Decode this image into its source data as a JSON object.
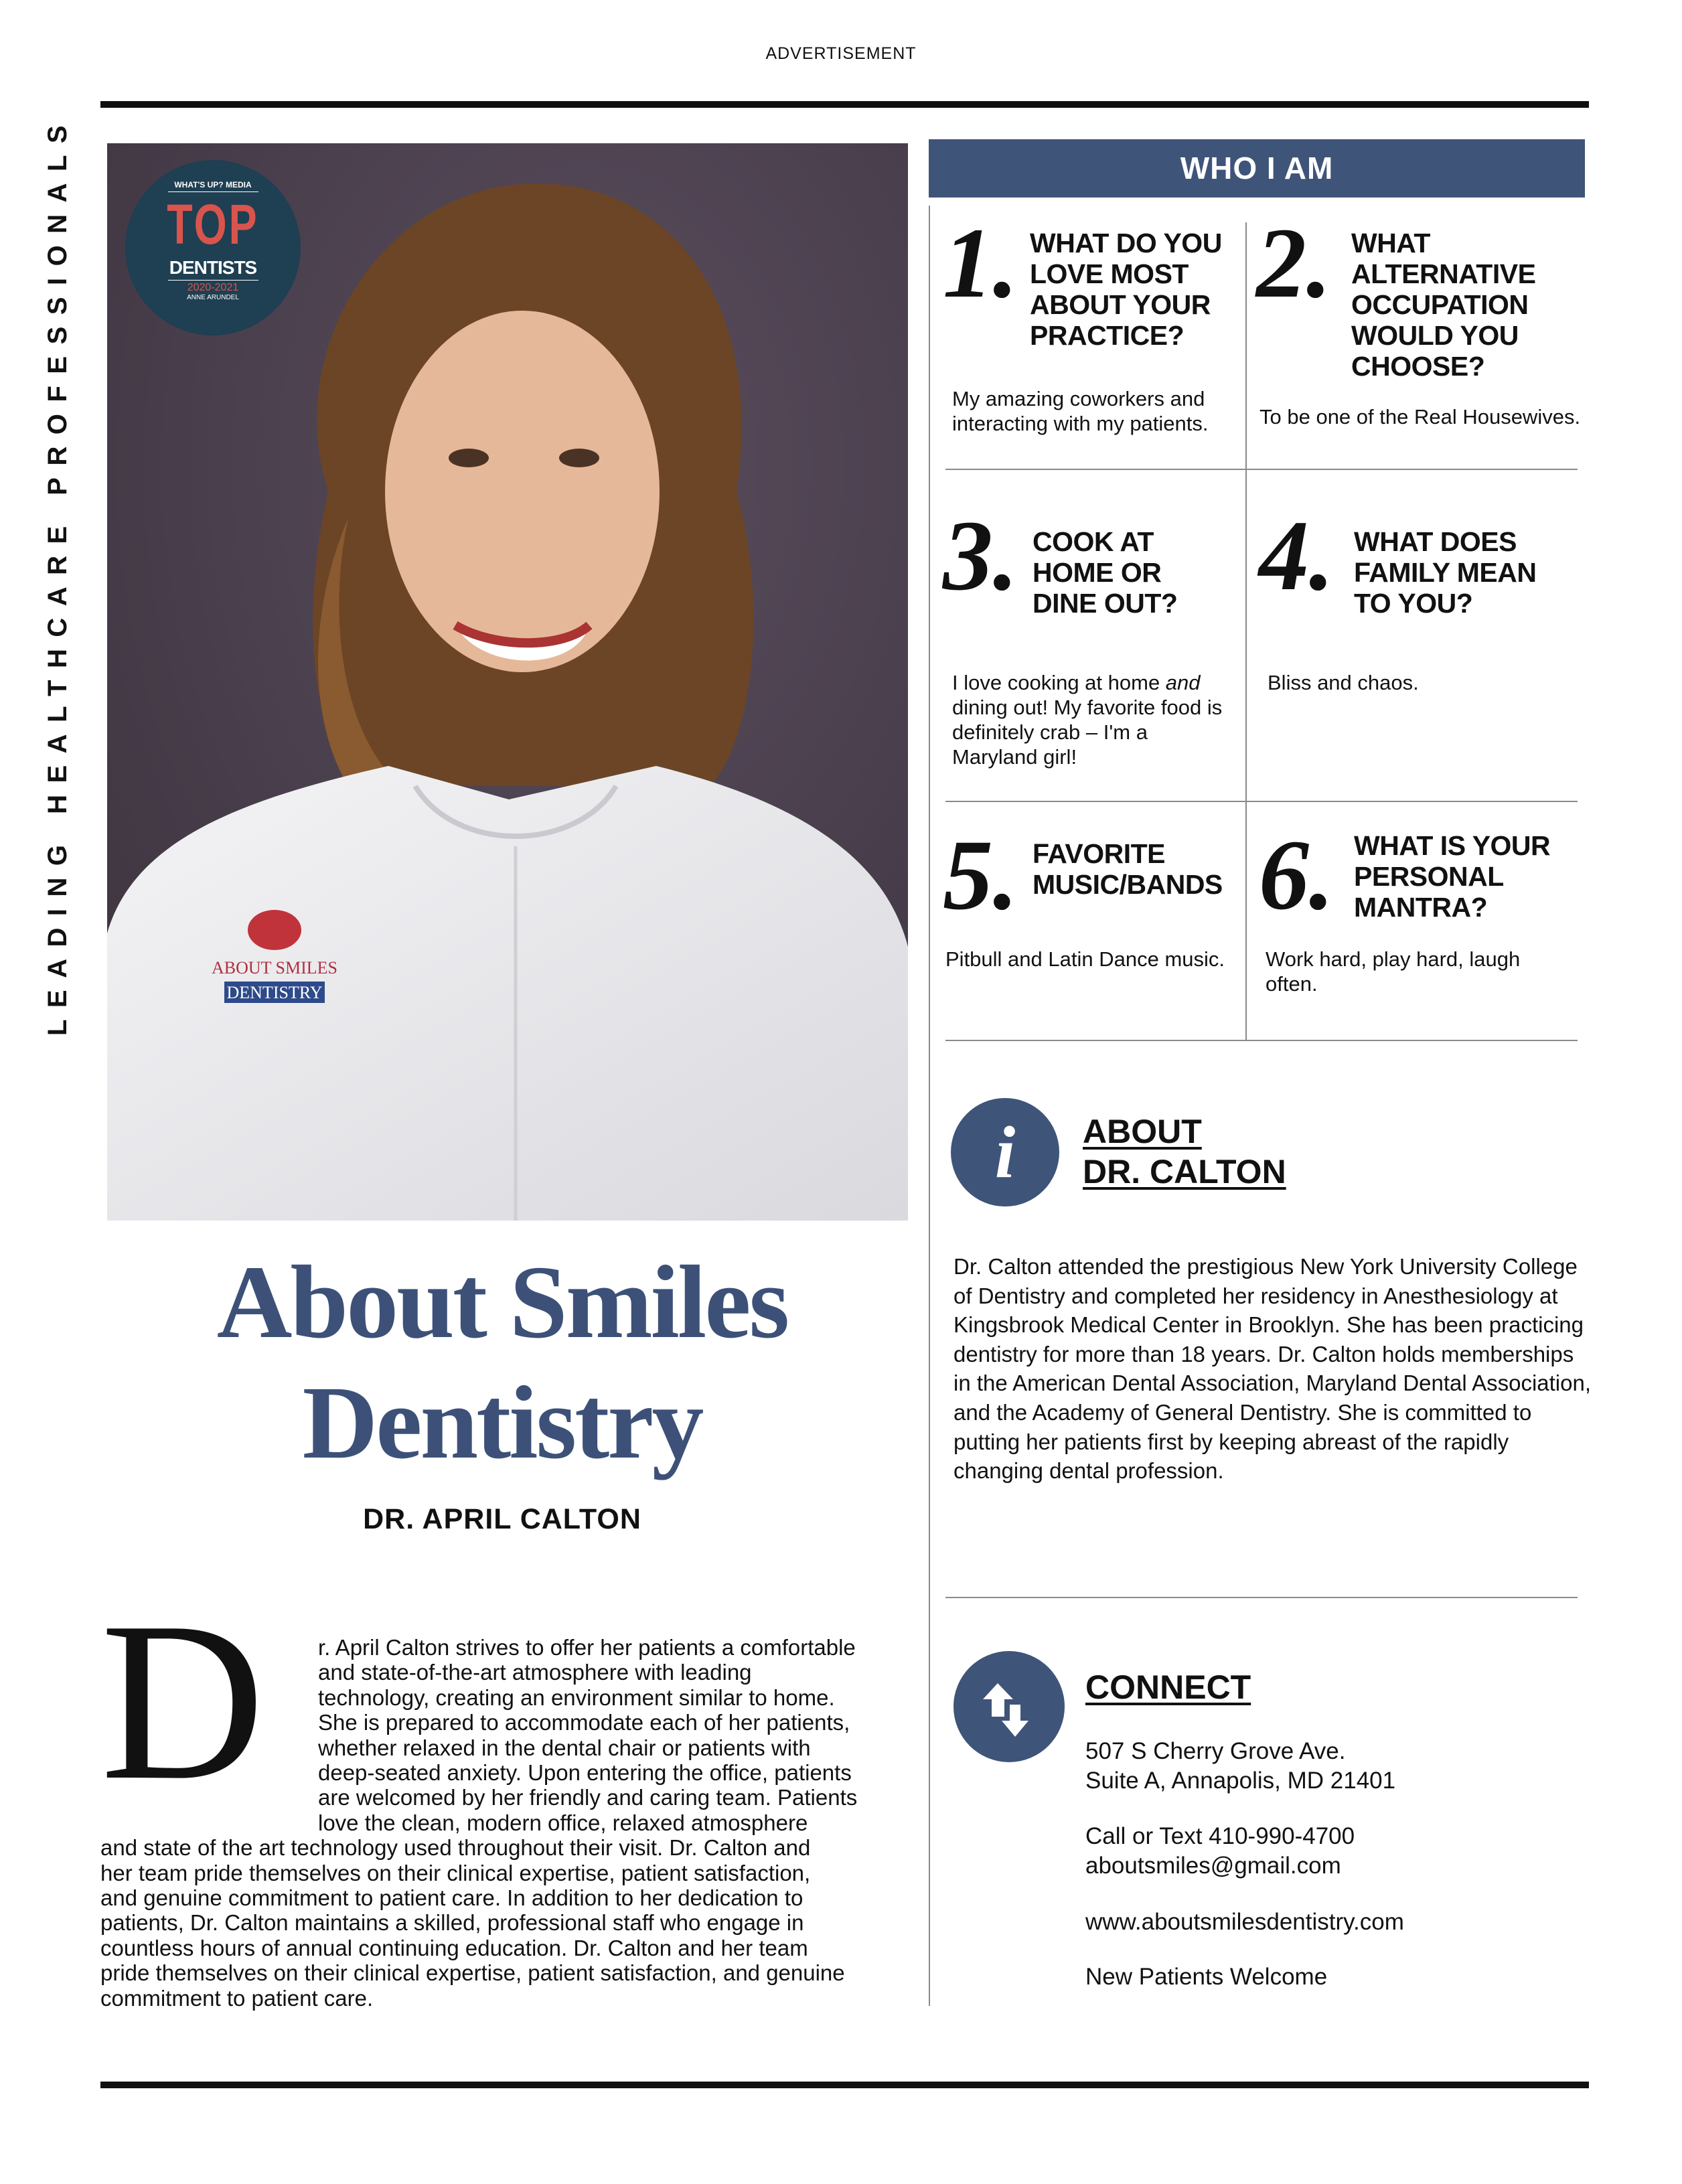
{
  "header": {
    "label": "ADVERTISEMENT"
  },
  "side_label": "LEADING HEALTHCARE PROFESSIONALS",
  "badge": {
    "publisher": "WHAT'S UP? MEDIA",
    "top": "TOP",
    "title": "DENTISTS",
    "years": "2020-2021",
    "region": "ANNE ARUNDEL"
  },
  "coat_logo": "ABOUT SMILES DENTISTRY",
  "colors": {
    "accent": "#3f5479",
    "headline": "#3d5178",
    "badge_bg": "#1f3f52",
    "badge_red": "#d9544d"
  },
  "who": {
    "title": "WHO I AM",
    "items": [
      {
        "number": "1.",
        "question": "WHAT DO YOU LOVE MOST ABOUT YOUR PRACTICE?",
        "answer": "My amazing coworkers and interacting with my patients."
      },
      {
        "number": "2.",
        "question": "WHAT ALTERNATIVE OCCUPATION WOULD YOU CHOOSE?",
        "answer": "To be one of the Real Housewives."
      },
      {
        "number": "3.",
        "question": "COOK AT HOME OR DINE OUT?",
        "answer_pre": "I love cooking at home ",
        "answer_em": "and",
        "answer_post": " dining out! My favorite food is definitely crab – I'm a Maryland girl!"
      },
      {
        "number": "4.",
        "question": "WHAT DOES FAMILY MEAN TO YOU?",
        "answer": "Bliss and chaos."
      },
      {
        "number": "5.",
        "question": "FAVORITE MUSIC/BANDS",
        "answer": "Pitbull and Latin Dance music."
      },
      {
        "number": "6.",
        "question": "WHAT IS YOUR PERSONAL MANTRA?",
        "answer": "Work hard, play hard, laugh often."
      }
    ]
  },
  "about": {
    "icon": "info-icon",
    "title_1": "ABOUT",
    "title_2": "DR. CALTON",
    "body": "Dr. Calton attended the prestigious New York University College of Dentistry and completed her residency in Anesthesiology at Kingsbrook Medical Center in Brooklyn. She has been practicing dentistry for more than 18 years. Dr. Calton holds memberships in the American Dental Association, Maryland Dental Association, and the Academy of General Dentistry. She is committed to putting her patients first by keeping abreast of the rapidly changing dental profession."
  },
  "connect": {
    "icon": "up-down-arrows-icon",
    "title": "CONNECT",
    "address_1": "507 S Cherry Grove Ave.",
    "address_2": "Suite A, Annapolis, MD 21401",
    "phone": "Call or Text 410-990-4700",
    "email": "aboutsmiles@gmail.com",
    "website": "www.aboutsmilesdentistry.com",
    "note": "New Patients Welcome"
  },
  "feature": {
    "headline_1": "About Smiles",
    "headline_2": "Dentistry",
    "doctor": "DR. APRIL CALTON",
    "drop_cap": "D",
    "body_lines": [
      "r. April Calton strives to offer her patients a comfortable",
      "and state-of-the-art atmosphere with leading",
      "technology, creating an environment similar to home.",
      "She is prepared to accommodate each of her patients,",
      "whether relaxed in the dental chair or patients with",
      "deep-seated anxiety. Upon entering the office, patients",
      "are welcomed by her friendly and caring team. Patients",
      "love the clean, modern office, relaxed atmosphere",
      "and state of the art technology used throughout their visit. Dr. Calton and",
      "her team pride themselves on their clinical expertise, patient satisfaction,",
      "and genuine commitment to patient care. In addition to her dedication to",
      "patients, Dr. Calton maintains a skilled, professional staff who engage in",
      "countless hours of annual continuing education. Dr. Calton and her team",
      "pride themselves on their clinical expertise, patient satisfaction, and genuine",
      "commitment to patient care."
    ]
  }
}
